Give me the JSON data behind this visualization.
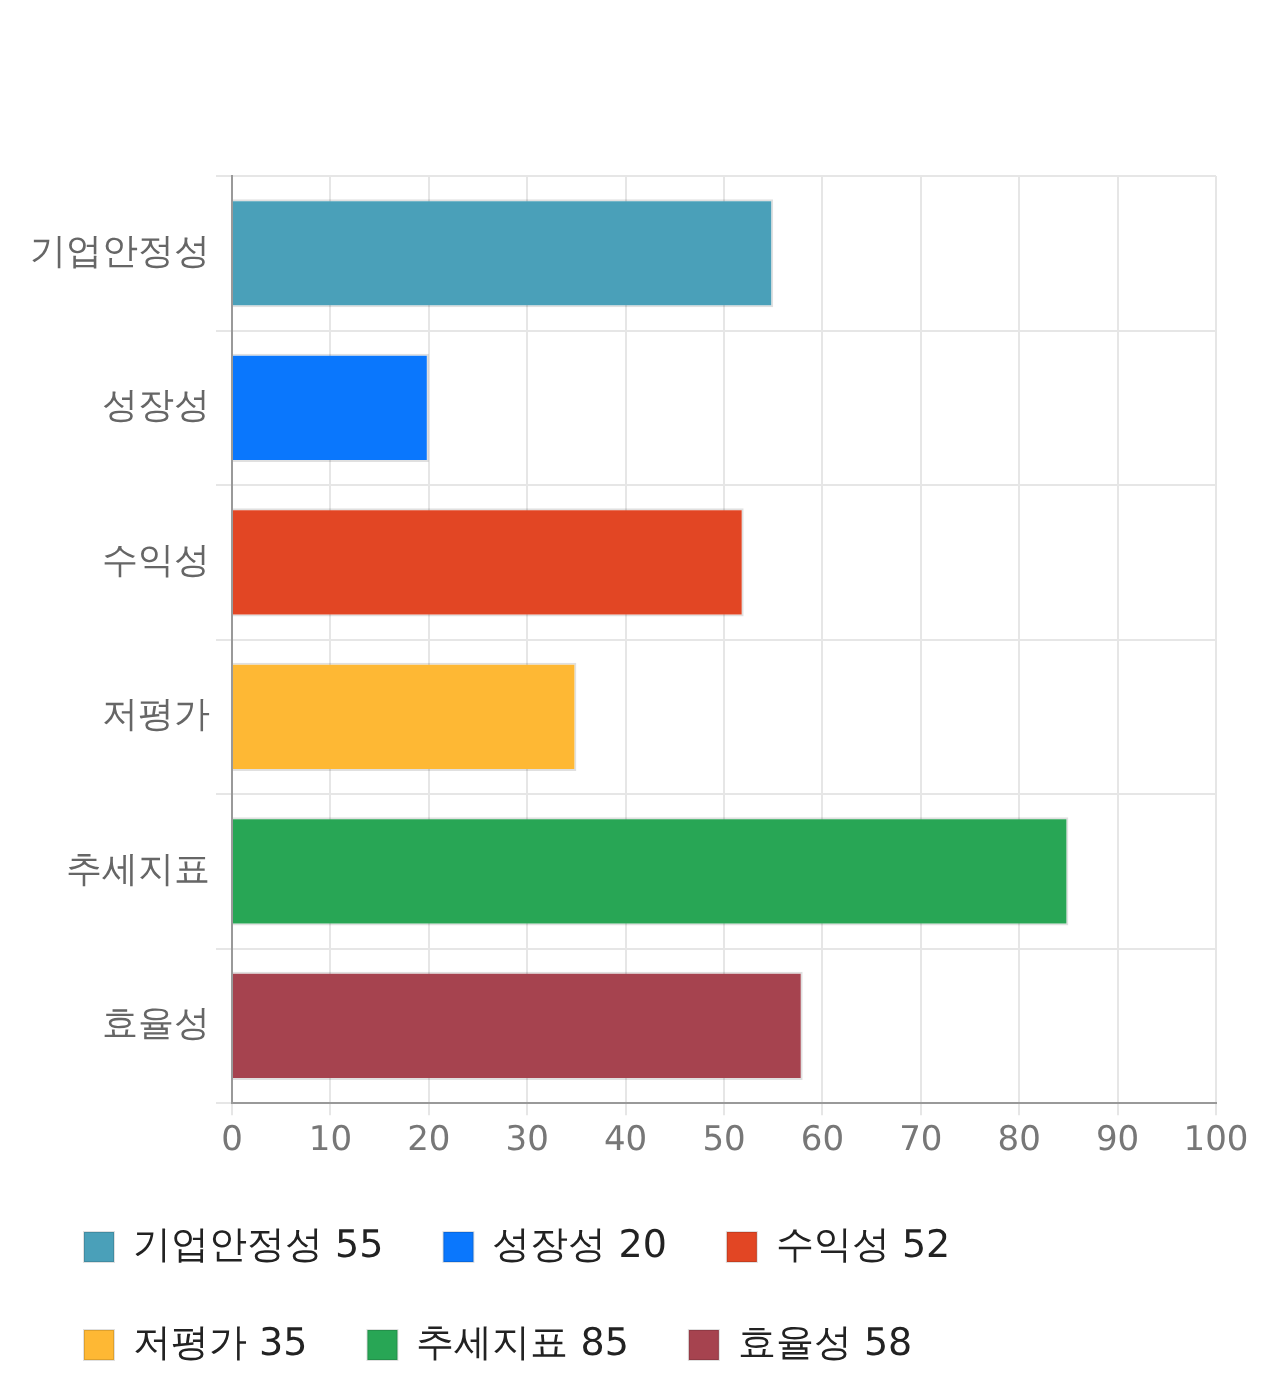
{
  "chart_data": {
    "type": "bar",
    "orientation": "horizontal",
    "categories": [
      "기업안정성",
      "성장성",
      "수익성",
      "저평가",
      "추세지표",
      "효율성"
    ],
    "series": [
      {
        "name": "기업안정성 55",
        "color": "#4aa0b9",
        "values": [
          55,
          null,
          null,
          null,
          null,
          null
        ]
      },
      {
        "name": "성장성 20",
        "color": "#0a77fd",
        "values": [
          null,
          20,
          null,
          null,
          null,
          null
        ]
      },
      {
        "name": "수익성 52",
        "color": "#e24624",
        "values": [
          null,
          null,
          52,
          null,
          null,
          null
        ]
      },
      {
        "name": "저평가 35",
        "color": "#feb834",
        "values": [
          null,
          null,
          null,
          35,
          null,
          null
        ]
      },
      {
        "name": "추세지표 85",
        "color": "#28a655",
        "values": [
          null,
          null,
          null,
          null,
          85,
          null
        ]
      },
      {
        "name": "효율성 58",
        "color": "#a6434f",
        "values": [
          null,
          null,
          null,
          null,
          null,
          58
        ]
      }
    ],
    "xlim": [
      0,
      100
    ],
    "xticks": [
      0,
      10,
      20,
      30,
      40,
      50,
      60,
      70,
      80,
      90,
      100
    ],
    "grid": true,
    "legend": "bottom"
  }
}
